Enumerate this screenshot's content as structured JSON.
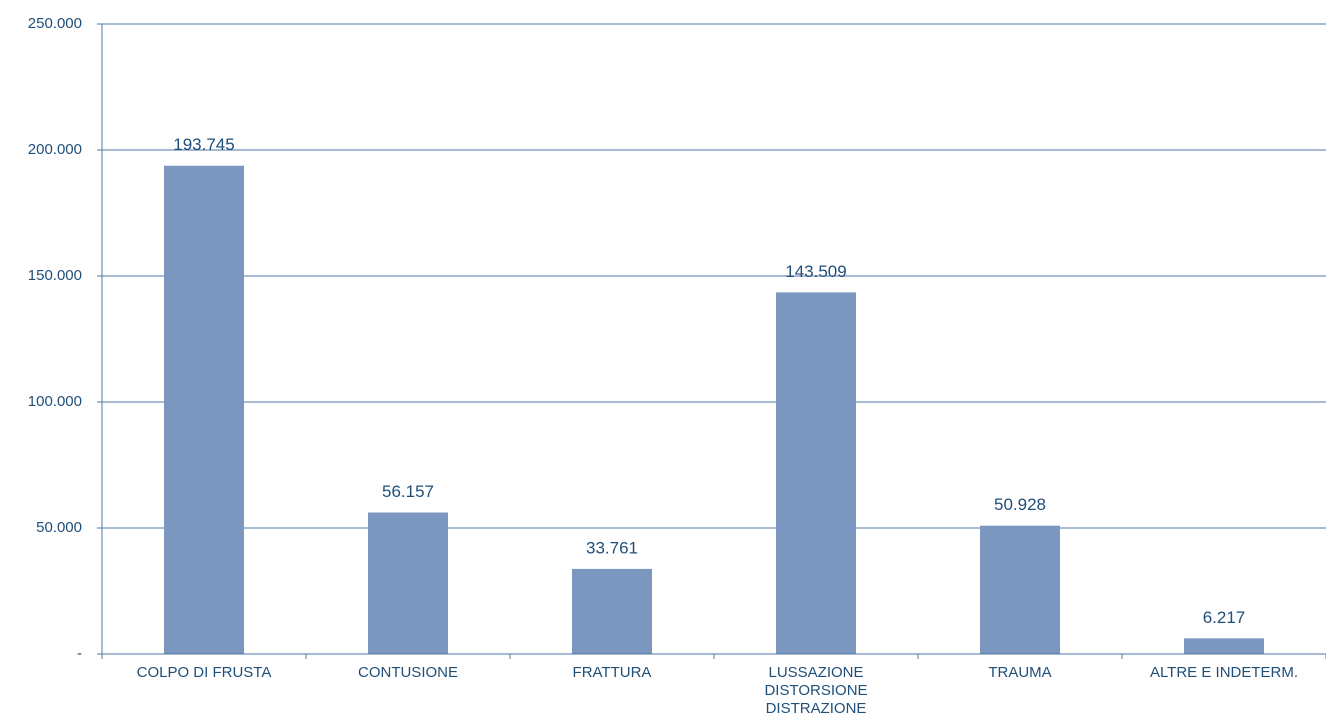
{
  "chart_data": {
    "type": "bar",
    "categories": [
      "COLPO DI FRUSTA",
      "CONTUSIONE",
      "FRATTURA",
      "LUSSAZIONE\nDISTORSIONE\nDISTRAZIONE",
      "TRAUMA",
      "ALTRE E INDETERM."
    ],
    "values": [
      193745,
      56157,
      33761,
      143509,
      50928,
      6217
    ],
    "value_labels": [
      "193.745",
      "56.157",
      "33.761",
      "143.509",
      "50.928",
      "6.217"
    ],
    "color": "#7b97c0",
    "ylim": [
      0,
      250000
    ],
    "yticks": [
      {
        "value": 0,
        "label": "-"
      },
      {
        "value": 50000,
        "label": "50.000"
      },
      {
        "value": 100000,
        "label": "100.000"
      },
      {
        "value": 150000,
        "label": "150.000"
      },
      {
        "value": 200000,
        "label": "200.000"
      },
      {
        "value": 250000,
        "label": "250.000"
      }
    ],
    "grid": true
  }
}
